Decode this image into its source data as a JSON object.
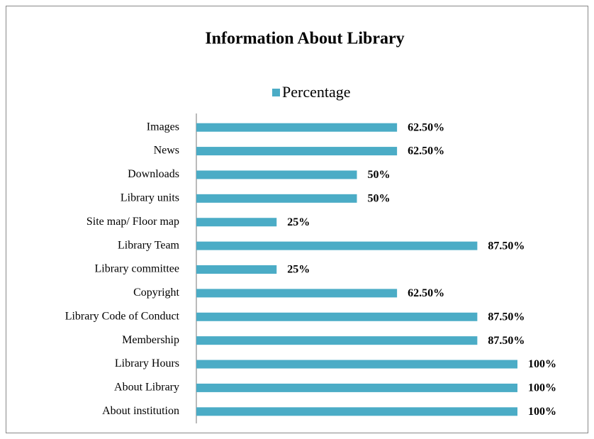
{
  "chart_data": {
    "type": "bar",
    "orientation": "horizontal",
    "title": "Information About Library",
    "categories": [
      "Images",
      "News",
      "Downloads",
      "Library units",
      "Site map/ Floor map",
      "Library Team",
      "Library committee",
      "Copyright",
      "Library Code of Conduct",
      "Membership",
      "Library Hours",
      "About Library",
      "About institution"
    ],
    "series": [
      {
        "name": "Percentage",
        "color": "#4bacc6",
        "values": [
          62.5,
          62.5,
          50,
          50,
          25,
          87.5,
          25,
          62.5,
          87.5,
          87.5,
          100,
          100,
          100
        ],
        "value_labels": [
          "62.50%",
          "62.50%",
          "50%",
          "50%",
          "25%",
          "87.50%",
          "25%",
          "62.50%",
          "87.50%",
          "87.50%",
          "100%",
          "100%",
          "100%"
        ]
      }
    ],
    "legend": "top"
  }
}
